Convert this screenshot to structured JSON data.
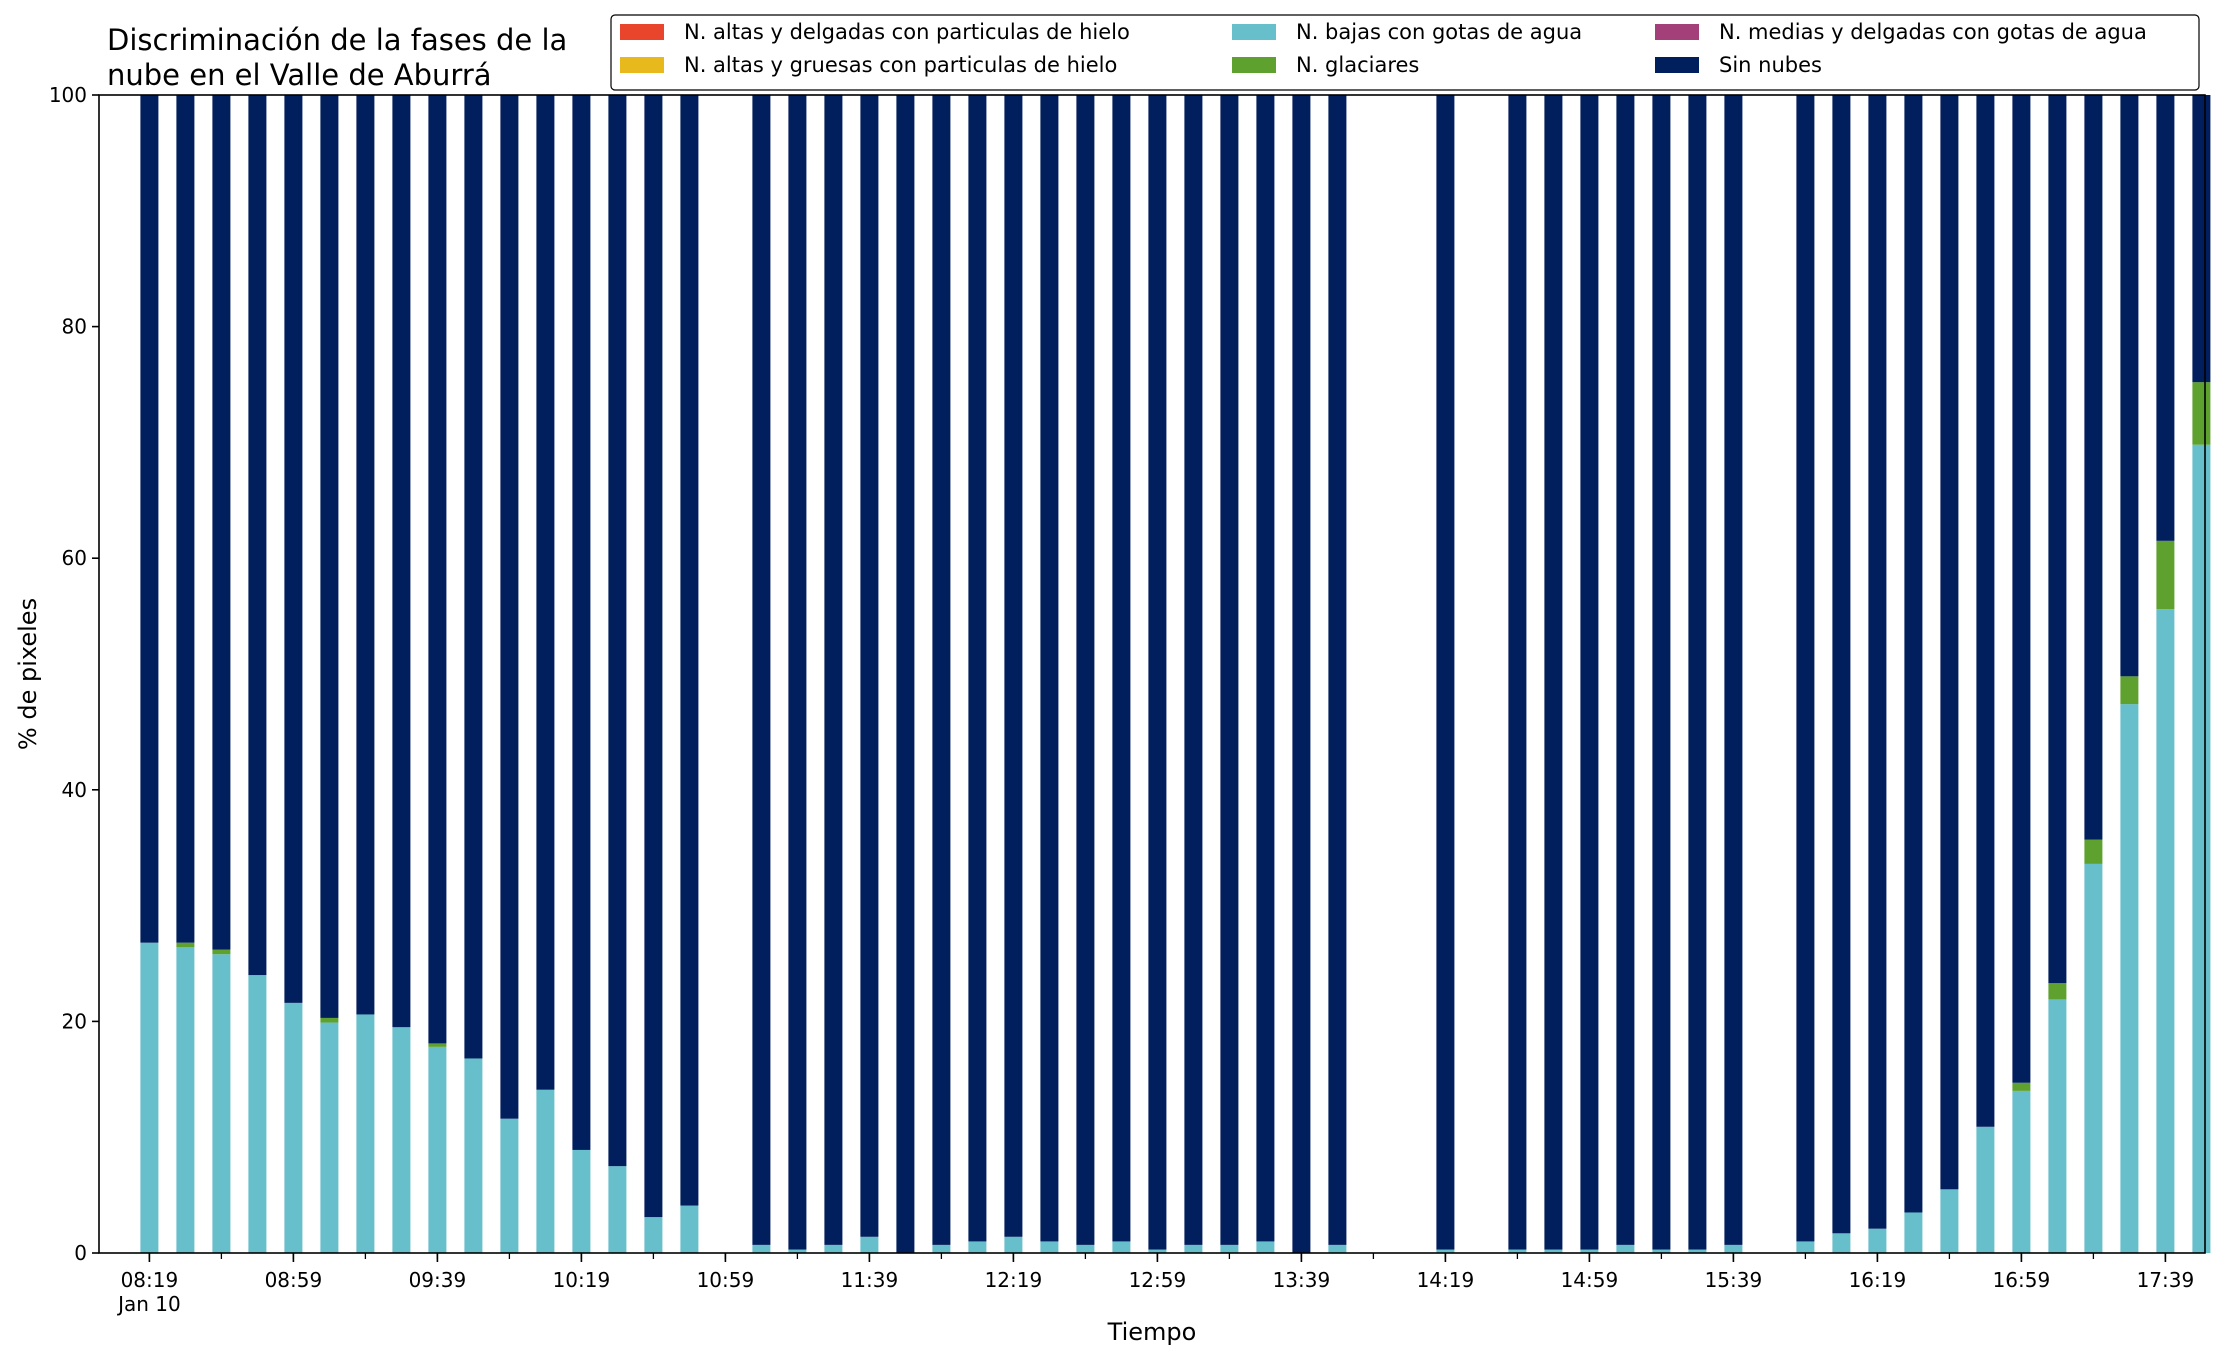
{
  "chart_data": {
    "type": "bar",
    "stacked": true,
    "title_lines": [
      "Discriminación de la fases de la",
      "nube en el Valle de Aburrá"
    ],
    "xlabel": "Tiempo",
    "ylabel": "% de pixeles",
    "ylim": [
      0,
      100
    ],
    "yticks": [
      0,
      20,
      40,
      60,
      80,
      100
    ],
    "xlim_minutes": [
      485,
      1070
    ],
    "bar_width_minutes": 5,
    "xtick_labels": [
      {
        "time": "08:19",
        "label": "08:19",
        "sublabel": "Jan 10"
      },
      {
        "time": "08:59",
        "label": "08:59"
      },
      {
        "time": "09:39",
        "label": "09:39"
      },
      {
        "time": "10:19",
        "label": "10:19"
      },
      {
        "time": "10:59",
        "label": "10:59"
      },
      {
        "time": "11:39",
        "label": "11:39"
      },
      {
        "time": "12:19",
        "label": "12:19"
      },
      {
        "time": "12:59",
        "label": "12:59"
      },
      {
        "time": "13:39",
        "label": "13:39"
      },
      {
        "time": "14:19",
        "label": "14:19"
      },
      {
        "time": "14:59",
        "label": "14:59"
      },
      {
        "time": "15:39",
        "label": "15:39"
      },
      {
        "time": "16:19",
        "label": "16:19"
      },
      {
        "time": "16:59",
        "label": "16:59"
      },
      {
        "time": "17:39",
        "label": "17:39"
      }
    ],
    "legend_placement": "top-right",
    "x": [
      "08:19",
      "08:29",
      "08:39",
      "08:49",
      "08:59",
      "09:09",
      "09:19",
      "09:29",
      "09:39",
      "09:49",
      "09:59",
      "10:09",
      "10:19",
      "10:29",
      "10:39",
      "10:49",
      "11:09",
      "11:19",
      "11:29",
      "11:39",
      "11:49",
      "11:59",
      "12:09",
      "12:19",
      "12:29",
      "12:39",
      "12:49",
      "12:59",
      "13:09",
      "13:19",
      "13:29",
      "13:39",
      "13:49",
      "14:19",
      "14:39",
      "14:49",
      "14:59",
      "15:09",
      "15:19",
      "15:29",
      "15:39",
      "15:59",
      "16:09",
      "16:19",
      "16:29",
      "16:39",
      "16:49",
      "16:59",
      "17:09",
      "17:19",
      "17:29",
      "17:39",
      "17:49"
    ],
    "series": [
      {
        "name": "N. altas y delgadas con particulas de hielo",
        "color": "#e8452c",
        "values": [
          0,
          0,
          0,
          0,
          0,
          0,
          0,
          0,
          0,
          0,
          0,
          0,
          0,
          0,
          0,
          0,
          0,
          0,
          0,
          0,
          0,
          0,
          0,
          0,
          0,
          0,
          0,
          0,
          0,
          0,
          0,
          0,
          0,
          0,
          0,
          0,
          0,
          0,
          0,
          0,
          0,
          0,
          0,
          0,
          0,
          0,
          0,
          0,
          0,
          0,
          0,
          0,
          0
        ]
      },
      {
        "name": "N. altas y gruesas con particulas de hielo",
        "color": "#e8b91c",
        "values": [
          0,
          0,
          0,
          0,
          0,
          0,
          0,
          0,
          0,
          0,
          0,
          0,
          0,
          0,
          0,
          0,
          0,
          0,
          0,
          0,
          0,
          0,
          0,
          0,
          0,
          0,
          0,
          0,
          0,
          0,
          0,
          0,
          0,
          0,
          0,
          0,
          0,
          0,
          0,
          0,
          0,
          0,
          0,
          0,
          0,
          0,
          0,
          0,
          0,
          0,
          0,
          0,
          0
        ]
      },
      {
        "name": "N. bajas con gotas de agua",
        "color": "#66bfca",
        "values": [
          26.8,
          26.4,
          25.8,
          24.0,
          21.6,
          19.9,
          20.6,
          19.5,
          17.8,
          16.8,
          11.6,
          14.1,
          8.9,
          7.5,
          3.1,
          4.1,
          0.7,
          0.3,
          0.7,
          1.4,
          0.0,
          0.7,
          1.0,
          1.4,
          1.0,
          0.7,
          1.0,
          0.3,
          0.7,
          0.7,
          1.0,
          0.0,
          0.7,
          0.3,
          0.3,
          0.3,
          0.3,
          0.7,
          0.3,
          0.3,
          0.7,
          1.0,
          1.7,
          2.1,
          3.5,
          5.5,
          10.9,
          14.0,
          21.9,
          33.6,
          47.4,
          55.6,
          69.8
        ]
      },
      {
        "name": "N. glaciares",
        "color": "#5fa12f",
        "values": [
          0,
          0.4,
          0.4,
          0,
          0,
          0.4,
          0,
          0,
          0.3,
          0,
          0,
          0,
          0,
          0,
          0,
          0,
          0,
          0,
          0,
          0,
          0,
          0,
          0,
          0,
          0,
          0,
          0,
          0,
          0,
          0,
          0,
          0,
          0,
          0,
          0,
          0,
          0,
          0,
          0,
          0,
          0,
          0,
          0,
          0,
          0,
          0,
          0,
          0.7,
          1.4,
          2.1,
          2.4,
          5.9,
          5.4
        ]
      },
      {
        "name": "N. medias y delgadas con gotas de agua",
        "color": "#a3407a",
        "values": [
          0,
          0,
          0,
          0,
          0,
          0,
          0,
          0,
          0,
          0,
          0,
          0,
          0,
          0,
          0,
          0,
          0,
          0,
          0,
          0,
          0,
          0,
          0,
          0,
          0,
          0,
          0,
          0,
          0,
          0,
          0,
          0,
          0,
          0,
          0,
          0,
          0,
          0,
          0,
          0,
          0,
          0,
          0,
          0,
          0,
          0,
          0,
          0,
          0,
          0,
          0,
          0,
          0
        ]
      },
      {
        "name": "Sin nubes",
        "color": "#001f5c",
        "values": [
          73.2,
          73.2,
          73.8,
          76.0,
          78.4,
          79.7,
          79.4,
          80.5,
          81.9,
          83.2,
          88.4,
          85.9,
          91.1,
          92.5,
          96.9,
          95.9,
          99.3,
          99.7,
          99.3,
          98.6,
          100.0,
          99.3,
          99.0,
          98.6,
          99.0,
          99.3,
          99.0,
          99.7,
          99.3,
          99.3,
          99.0,
          100.0,
          99.3,
          99.7,
          99.7,
          99.7,
          99.7,
          99.3,
          99.7,
          99.7,
          99.3,
          99.0,
          98.3,
          97.9,
          96.5,
          94.5,
          89.1,
          85.3,
          76.7,
          64.3,
          50.2,
          38.5,
          24.8
        ]
      }
    ],
    "legend_layout": [
      [
        "N. altas y delgadas con particulas de hielo",
        "N. altas y gruesas con particulas de hielo"
      ],
      [
        "N. bajas con gotas de agua",
        "N. glaciares"
      ],
      [
        "N. medias y delgadas con gotas de agua",
        "Sin nubes"
      ]
    ]
  }
}
